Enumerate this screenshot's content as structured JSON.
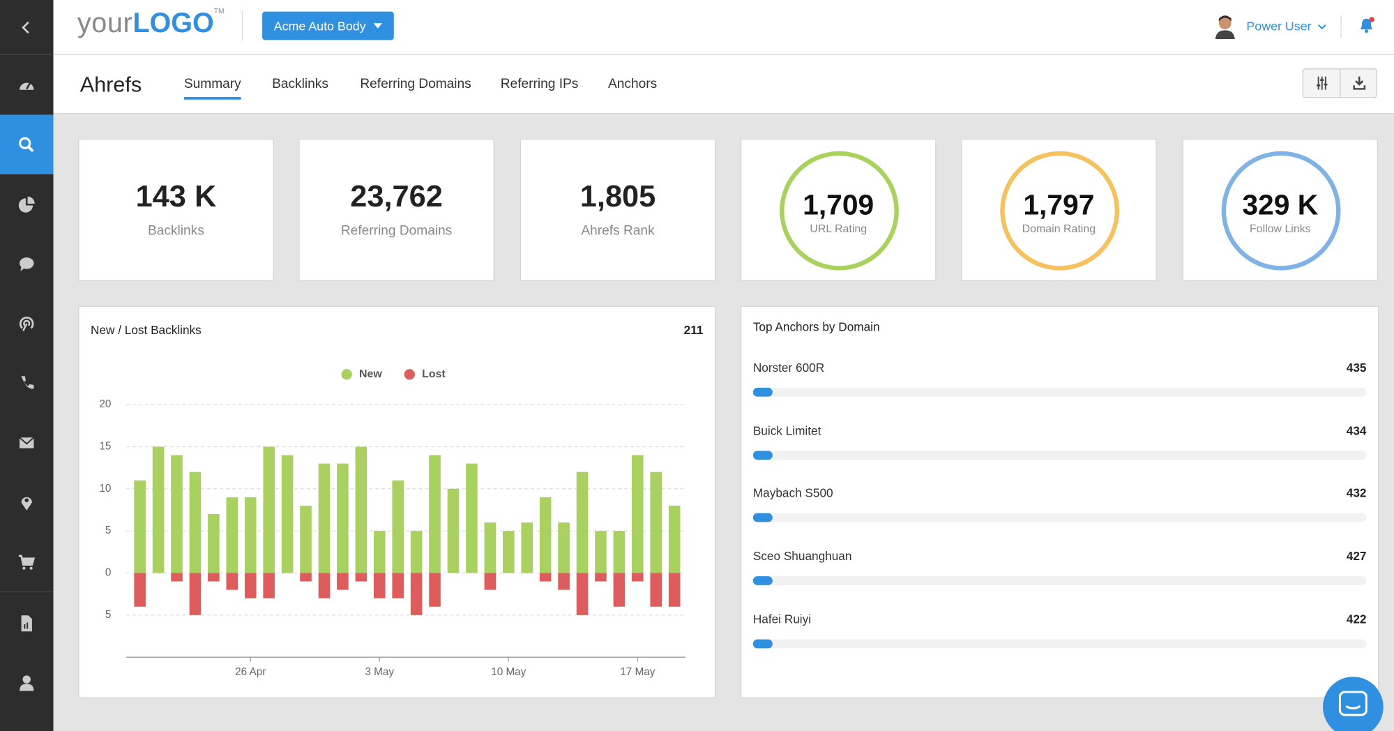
{
  "header": {
    "logo_light": "your",
    "logo_bold": "LOGO",
    "logo_tm": "TM",
    "account": "Acme Auto Body",
    "user": "Power User"
  },
  "page": {
    "title": "Ahrefs",
    "tabs": [
      "Summary",
      "Backlinks",
      "Referring Domains",
      "Referring IPs",
      "Anchors"
    ],
    "active_tab": 0
  },
  "kpis": [
    {
      "value": "143 K",
      "label": "Backlinks"
    },
    {
      "value": "23,762",
      "label": "Referring Domains"
    },
    {
      "value": "1,805",
      "label": "Ahrefs Rank"
    },
    {
      "value": "1,709",
      "label": "URL Rating",
      "ring": "#a9d25a"
    },
    {
      "value": "1,797",
      "label": "Domain Rating",
      "ring": "#f5c25d"
    },
    {
      "value": "329 K",
      "label": "Follow Links",
      "ring": "#7fb3e8"
    }
  ],
  "chart_data": {
    "type": "bar",
    "stacked": true,
    "title": "New / Lost Backlinks",
    "annotation": "211",
    "categories": [
      null,
      null,
      null,
      null,
      null,
      null,
      "26 Apr",
      null,
      null,
      null,
      null,
      null,
      null,
      "3 May",
      null,
      null,
      null,
      null,
      null,
      null,
      "10 May",
      null,
      null,
      null,
      null,
      null,
      null,
      "17 May",
      null,
      null
    ],
    "series": [
      {
        "name": "New",
        "color": "#a8d160",
        "values": [
          11,
          15,
          14,
          12,
          7,
          9,
          9,
          15,
          14,
          8,
          13,
          13,
          15,
          5,
          11,
          5,
          14,
          10,
          13,
          6,
          5,
          6,
          9,
          6,
          12,
          5,
          5,
          14,
          12,
          8
        ]
      },
      {
        "name": "Lost",
        "color": "#de5c5c",
        "values": [
          -4,
          0,
          -1,
          -5,
          -1,
          -2,
          -3,
          -3,
          0,
          -1,
          -3,
          -2,
          -1,
          -3,
          -3,
          -5,
          -4,
          0,
          0,
          -2,
          0,
          0,
          -1,
          -2,
          -5,
          -1,
          -4,
          -1,
          -4,
          -4
        ]
      }
    ],
    "ylim": [
      -10,
      20
    ],
    "yticks": [
      20,
      15,
      10,
      5,
      0,
      {
        "value": -5,
        "label": "5"
      }
    ],
    "grid": true,
    "legend": "top"
  },
  "anchors": {
    "title": "Top Anchors by Domain",
    "items": [
      {
        "name": "Norster 600R",
        "value": 435
      },
      {
        "name": "Buick Limitet",
        "value": 434
      },
      {
        "name": "Maybach S500",
        "value": 432
      },
      {
        "name": "Sceo Shuanghuan",
        "value": 427
      },
      {
        "name": "Hafei Ruiyi",
        "value": 422
      }
    ]
  }
}
